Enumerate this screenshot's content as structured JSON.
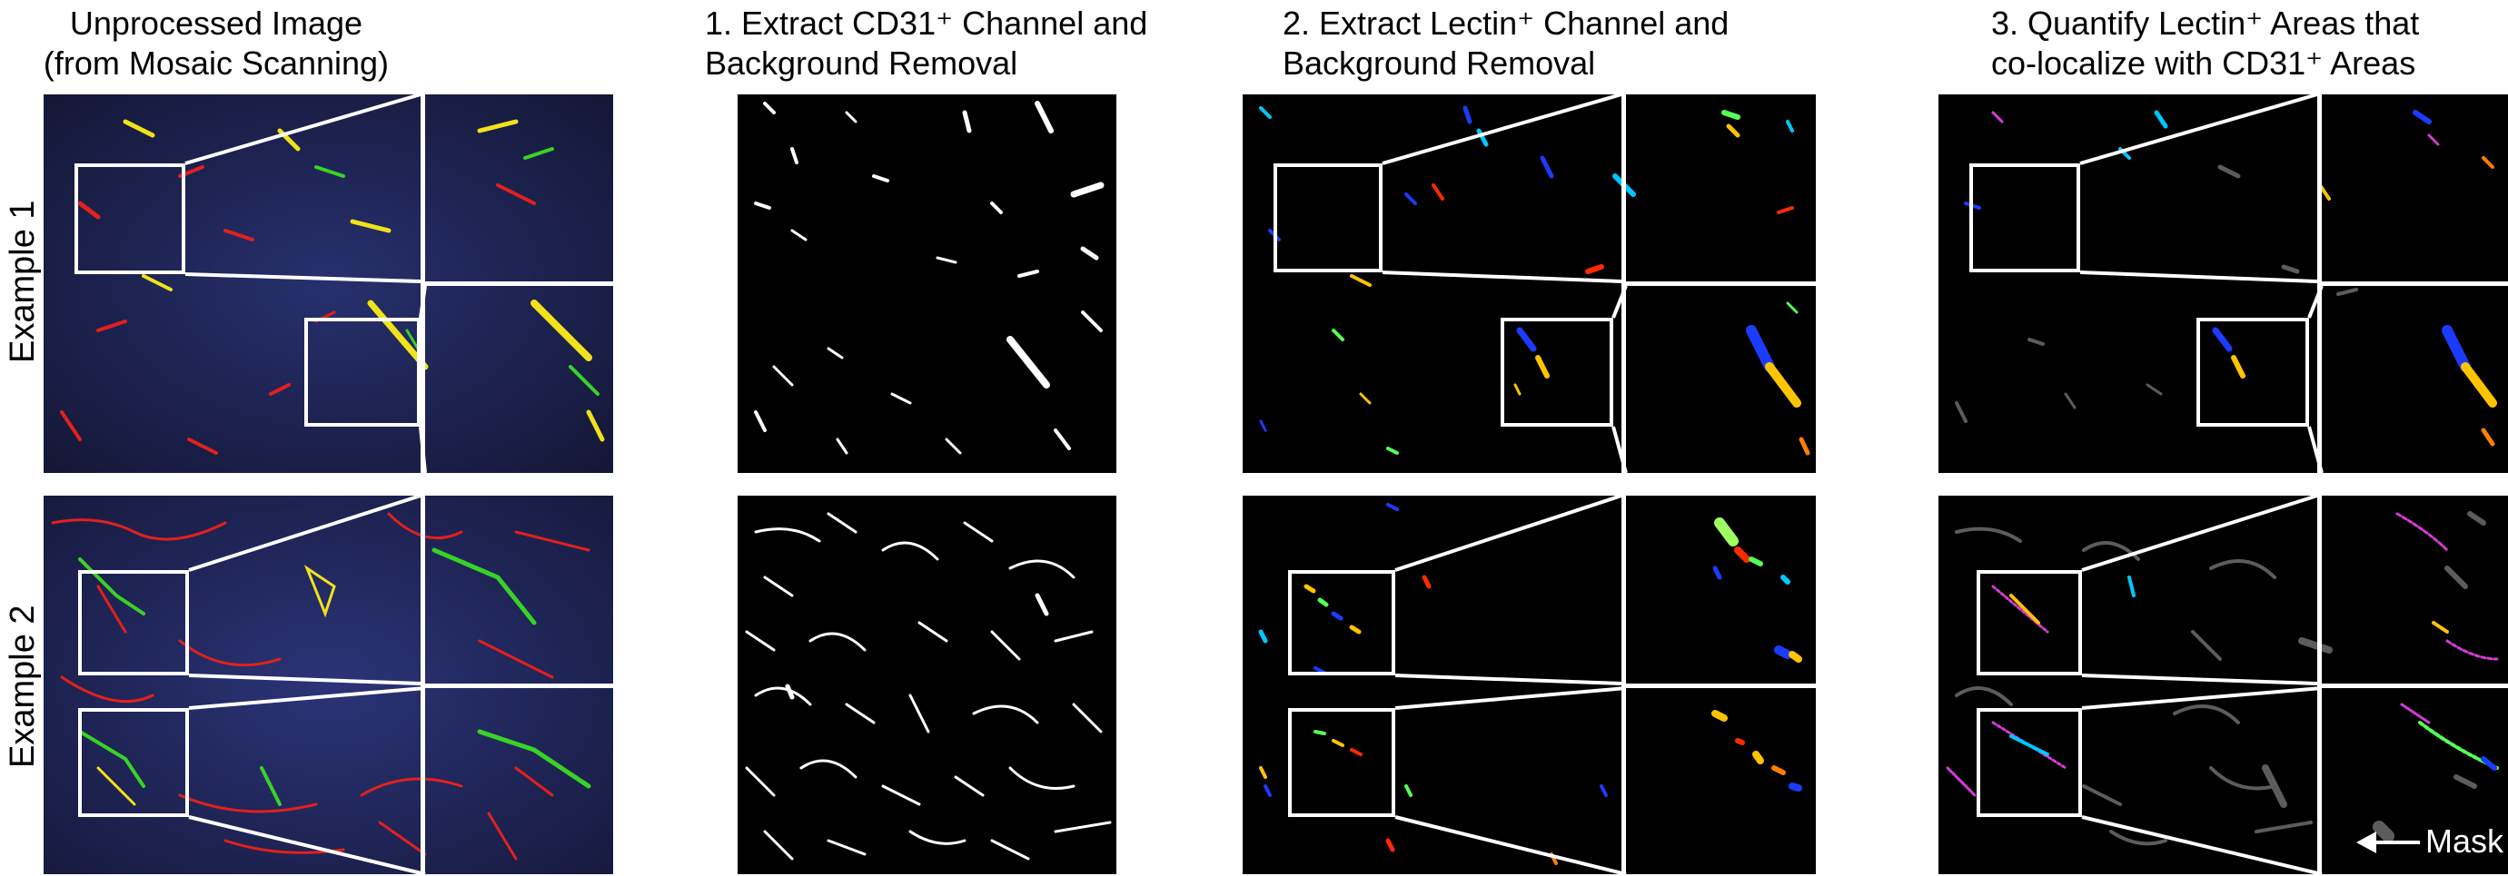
{
  "columns": [
    {
      "title_line1": "Unprocessed Image",
      "title_line2": "(from Mosaic Scanning)"
    },
    {
      "title_line1": "1. Extract CD31⁺ Channel and",
      "title_line2": "Background Removal"
    },
    {
      "title_line1": "2. Extract Lectin⁺ Channel and",
      "title_line2": "Background Removal"
    },
    {
      "title_line1": "3. Quantify Lectin⁺ Areas that",
      "title_line2": "co-localize with CD31⁺ Areas"
    }
  ],
  "rows": [
    {
      "label": "Example 1"
    },
    {
      "label": "Example 2"
    }
  ],
  "annotations": {
    "mask_label": "Mask"
  },
  "colors": {
    "raw_background": "#1b1f4e",
    "raw_red": "#e3201d",
    "raw_green": "#39d226",
    "raw_yellow": "#f0e21b",
    "binary_white": "#ffffff",
    "mask_gray": "#5c5c5c",
    "magenta": "#d53cd6",
    "lectin_palette": [
      "#1b3cff",
      "#00c8ff",
      "#ffc400",
      "#ff2a00",
      "#55ff55",
      "#c000ff",
      "#0044aa",
      "#ff7f00"
    ]
  }
}
